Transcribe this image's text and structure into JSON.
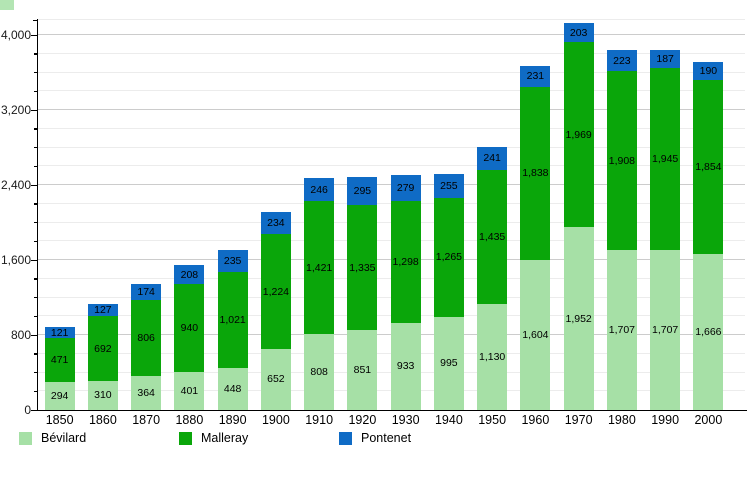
{
  "chart_data": {
    "type": "bar",
    "stacked": true,
    "title": "",
    "xlabel": "",
    "ylabel": "",
    "categories": [
      "1850",
      "1860",
      "1870",
      "1880",
      "1890",
      "1900",
      "1910",
      "1920",
      "1930",
      "1940",
      "1950",
      "1960",
      "1970",
      "1980",
      "1990",
      "2000"
    ],
    "series": [
      {
        "name": "Bévilard",
        "color": "#A6E0A6",
        "values": [
          294,
          310,
          364,
          401,
          448,
          652,
          808,
          851,
          933,
          995,
          1130,
          1604,
          1952,
          1707,
          1707,
          1666
        ]
      },
      {
        "name": "Malleray",
        "color": "#0AA60A",
        "values": [
          471,
          692,
          806,
          940,
          1021,
          1224,
          1421,
          1335,
          1298,
          1265,
          1435,
          1838,
          1969,
          1908,
          1945,
          1854
        ]
      },
      {
        "name": "Pontenet",
        "color": "#0F6BC5",
        "values": [
          121,
          127,
          174,
          208,
          235,
          234,
          246,
          295,
          279,
          255,
          241,
          231,
          203,
          223,
          187,
          190
        ]
      }
    ],
    "y_ticks": [
      0,
      800,
      1600,
      2400,
      3200,
      4000
    ],
    "minor_gridline_step": 200,
    "ylim": [
      0,
      4160
    ],
    "grid": true,
    "legend_position": "bottom",
    "value_labels": "inside-segments, thousands separated with comma"
  },
  "style_colors": {
    "gridline_minor": "#ececec",
    "gridline_major": "#cccccc",
    "axis": "#000000",
    "background": "#ffffff"
  }
}
